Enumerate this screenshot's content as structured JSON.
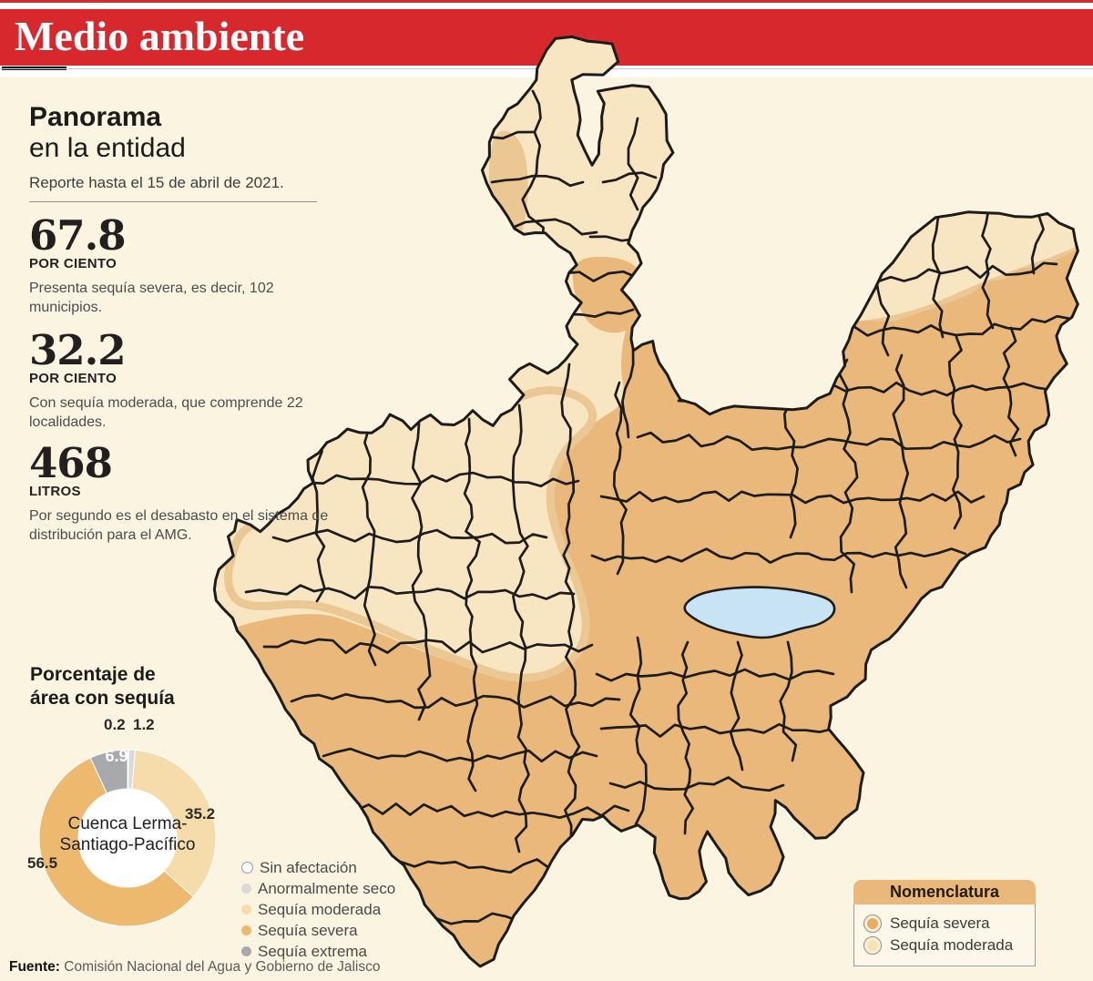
{
  "header": {
    "section_label": "Medio ambiente"
  },
  "intro": {
    "title_bold": "Panorama",
    "title_rest": "en la entidad",
    "report_note": "Reporte hasta el 15 de abril de 2021."
  },
  "stats": [
    {
      "value": "67.8",
      "unit": "POR CIENTO",
      "desc": "Presenta sequía severa, es decir, 102 municipios."
    },
    {
      "value": "32.2",
      "unit": "POR CIENTO",
      "desc": "Con sequía moderada, que comprende 22 localidades."
    },
    {
      "value": "468",
      "unit": "LITROS",
      "desc": "Por segundo es el desabasto en el sistema de distribución para el AMG."
    }
  ],
  "donut": {
    "title_line1": "Porcentaje de",
    "title_line2": "área con sequía",
    "center_line1": "Cuenca Lerma-",
    "center_line2": "Santiago-Pacífico"
  },
  "chart_data": {
    "type": "pie",
    "donut": true,
    "title": "Porcentaje de área con sequía",
    "center_label": "Cuenca Lerma-Santiago-Pacífico",
    "categories": [
      "Sin afectación",
      "Anormalmente seco",
      "Sequía moderada",
      "Sequía severa",
      "Sequía extrema"
    ],
    "values": [
      0.2,
      1.2,
      35.2,
      56.5,
      6.9
    ],
    "colors": [
      "#ffffff",
      "#d9dadb",
      "#f6dcab",
      "#ecb96e",
      "#a7a9ac"
    ],
    "legend_position": "right"
  },
  "map_legend": {
    "title": "Nomenclatura",
    "items": [
      {
        "label": "Sequía severa",
        "color": "#e9ae64"
      },
      {
        "label": "Sequía moderada",
        "color": "#f7e2b8"
      }
    ]
  },
  "footer": {
    "source_label": "Fuente:",
    "source_text": " Comisión Nacional del Agua y Gobierno de Jalisco"
  },
  "colors": {
    "accent_red": "#d7282e",
    "severe": "#eab87a",
    "moderate": "#f8e5c1",
    "transition": "#ebc793",
    "background": "#fbf4e1",
    "lake": "#c8e4f4",
    "border": "#1c1c1c"
  }
}
